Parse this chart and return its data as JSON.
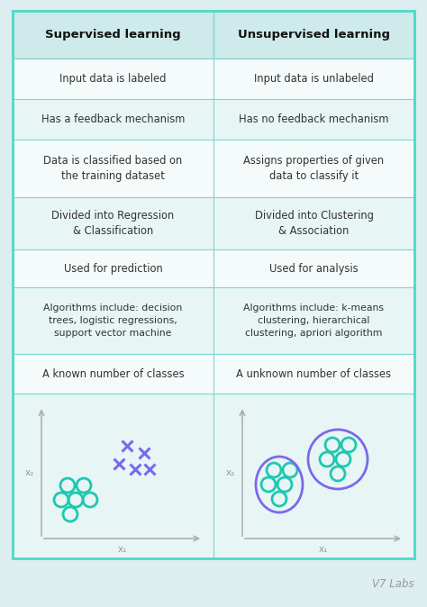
{
  "bg_color": "#ddeef0",
  "border_color": "#4dd9c8",
  "header_bg": "#ceeaea",
  "row_bg_light": "#e8f5f5",
  "row_bg_white": "#f5fbfb",
  "divider_color": "#7dd8d0",
  "text_color": "#333333",
  "header_text_color": "#111111",
  "teal_color": "#1dc8b0",
  "purple_color": "#7b68ee",
  "title": "Supervised learning",
  "title2": "Unsupervised learning",
  "rows": [
    [
      "Input data is labeled",
      "Input data is unlabeled"
    ],
    [
      "Has a feedback mechanism",
      "Has no feedback mechanism"
    ],
    [
      "Data is classified based on\nthe training dataset",
      "Assigns properties of given\ndata to classify it"
    ],
    [
      "Divided into Regression\n& Classification",
      "Divided into Clustering\n& Association"
    ],
    [
      "Used for prediction",
      "Used for analysis"
    ],
    [
      "Algorithms include: decision\ntrees, logistic regressions,\nsupport vector machine",
      "Algorithms include: k-means\nclustering, hierarchical\nclustering, apriori algorithm"
    ],
    [
      "A known number of classes",
      "A unknown number of classes"
    ]
  ],
  "watermark": "V7 Labs",
  "watermark_color": "#999999",
  "axis_color": "#aaaaaa",
  "axis_label_color": "#999999"
}
